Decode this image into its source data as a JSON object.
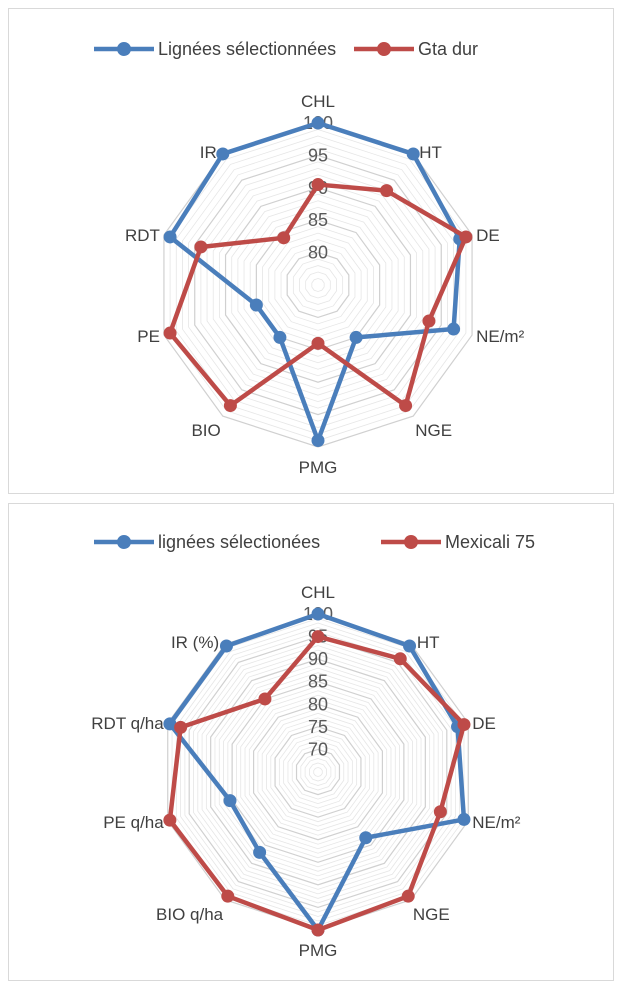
{
  "chart_data": [
    {
      "type": "radar",
      "categories": [
        "CHL",
        "HT",
        "DE",
        "NE/m²",
        "NGE",
        "PMG",
        "BIO",
        "PE",
        "RDT",
        "IR"
      ],
      "ticks": [
        "80",
        "85",
        "90",
        "95",
        "100"
      ],
      "rlim": [
        75,
        100
      ],
      "grid": true,
      "legend": "top",
      "series": [
        {
          "name": "Lignées sélectionnées",
          "color": "#4a7ebb",
          "values": [
            100,
            100,
            98,
            97,
            85,
            99,
            85,
            85,
            99,
            100
          ]
        },
        {
          "name": "Gta dur",
          "color": "#be4b48",
          "values": [
            90.5,
            93,
            99,
            93,
            98,
            84,
            98,
            99,
            94,
            84
          ]
        }
      ]
    },
    {
      "type": "radar",
      "categories": [
        "CHL",
        "HT",
        "DE",
        "NE/m²",
        "NGE",
        "PMG",
        "BIO q/ha",
        "PE q/ha",
        "RDT q/ha",
        "IR (%)"
      ],
      "ticks": [
        "70",
        "75",
        "80",
        "85",
        "90",
        "95",
        "100"
      ],
      "rlim": [
        65,
        100
      ],
      "grid": true,
      "legend": "top",
      "series": [
        {
          "name": "lignées sélectionées",
          "color": "#4a7ebb",
          "values": [
            100,
            99.5,
            97.5,
            99,
            83,
            100,
            87,
            85.5,
            99.5,
            99.5
          ]
        },
        {
          "name": "Mexicali 75",
          "color": "#be4b48",
          "values": [
            95,
            96,
            99,
            93.5,
            99,
            100,
            99,
            99.5,
            97,
            85
          ]
        }
      ]
    }
  ]
}
